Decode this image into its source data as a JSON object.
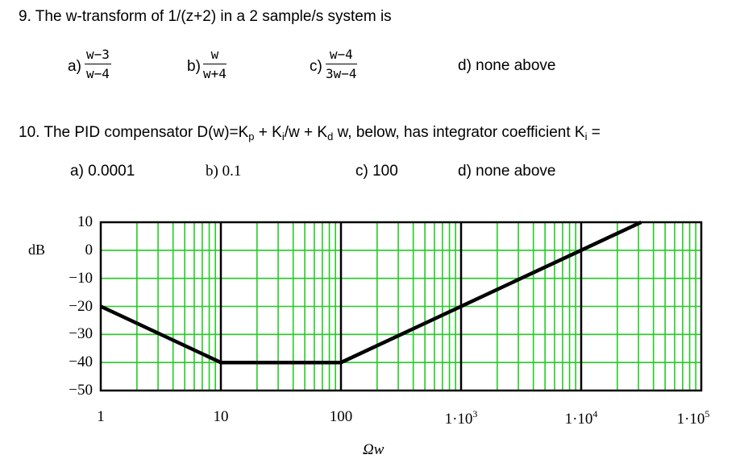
{
  "q9": {
    "text": "9.  The w-transform of 1/(z+2) in a 2 sample/s system is",
    "options": [
      {
        "label": "a)",
        "num": "w−3",
        "den": "w−4"
      },
      {
        "label": "b)",
        "num": "w",
        "den": "w+4"
      },
      {
        "label": "c)",
        "num": "w−4",
        "den": "3w−4"
      },
      {
        "label": "d) none above"
      }
    ]
  },
  "q10": {
    "text_pre": "10. The PID compensator D(w)=K",
    "sub_p": "p",
    "text_mid1": " + K",
    "sub_i1": "i",
    "text_mid2": "/w + K",
    "sub_d": "d",
    "text_mid3": " w, below, has integrator coefficient  K",
    "sub_i2": "i",
    "text_end": " =",
    "options": [
      "a) 0.0001",
      "b) 0.1",
      "c) 100",
      "d) none above"
    ]
  },
  "chart_data": {
    "type": "line",
    "ylabel": "dB",
    "xlabel": "Ωw",
    "xscale": "log",
    "xlim": [
      1,
      100000
    ],
    "ylim": [
      -50,
      10
    ],
    "xticks": [
      {
        "value": 1,
        "mant": "1",
        "exp": ""
      },
      {
        "value": 10,
        "mant": "10",
        "exp": ""
      },
      {
        "value": 100,
        "mant": "100",
        "exp": ""
      },
      {
        "value": 1000,
        "mant": "1·10",
        "exp": "3"
      },
      {
        "value": 10000,
        "mant": "1·10",
        "exp": "4"
      },
      {
        "value": 100000,
        "mant": "1·10",
        "exp": "5"
      }
    ],
    "yticks": [
      "10",
      "0",
      "−10",
      "−20",
      "−30",
      "−40",
      "−50"
    ],
    "grid": true,
    "series": [
      {
        "x": [
          1,
          10,
          100,
          10000,
          50000
        ],
        "y": [
          -20,
          -40,
          -40,
          0,
          14
        ]
      }
    ],
    "colors": {
      "grid": "#22cc22",
      "line": "#000000",
      "decade": "#000000"
    }
  }
}
